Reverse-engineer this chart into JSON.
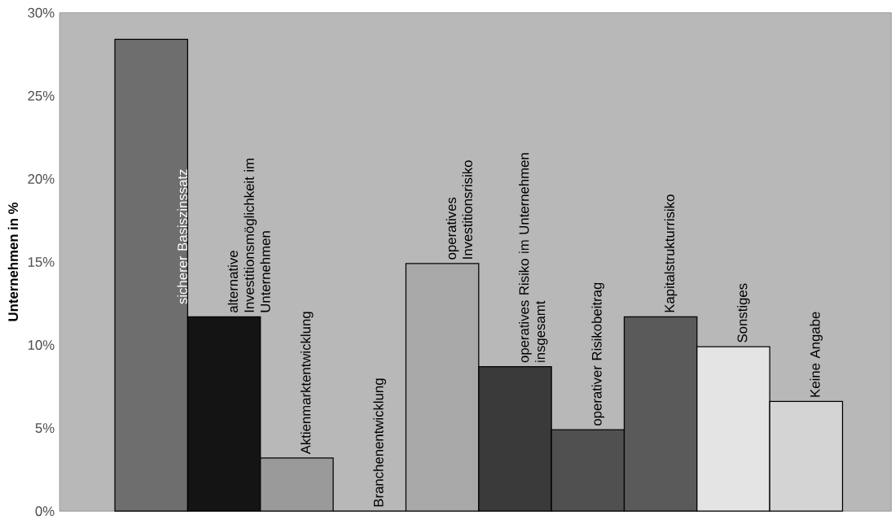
{
  "chart_data": {
    "type": "bar",
    "ylabel": "Unternehmen in %",
    "categories": [
      "sicherer Basiszinssatz",
      "alternative Investitionsmöglichkeit im Unternehmen",
      "Aktienmarktentwicklung",
      "Branchenentwicklung",
      "operatives Investitionsrisiko",
      "operatives Risiko im Unternehmen insgesamt",
      "operativer Risikobeitrag",
      "Kapitalstrukturrisiko",
      "Sonstiges",
      "Keine Angabe"
    ],
    "values": [
      28.4,
      11.7,
      3.2,
      0,
      14.9,
      8.7,
      4.9,
      11.7,
      9.9,
      6.6
    ],
    "colors": [
      "#6e6e6e",
      "#141414",
      "#9a9a9a",
      "#9a9a9a",
      "#a8a8a8",
      "#3a3a3a",
      "#505050",
      "#5a5a5a",
      "#e4e4e4",
      "#d4d4d4"
    ],
    "ylim": [
      0,
      30
    ],
    "yticks": [
      {
        "value": 0,
        "label": "0%"
      },
      {
        "value": 5,
        "label": "5%"
      },
      {
        "value": 10,
        "label": "10%"
      },
      {
        "value": 15,
        "label": "15%"
      },
      {
        "value": 20,
        "label": "20%"
      },
      {
        "value": 25,
        "label": "25%"
      },
      {
        "value": 30,
        "label": "30%"
      }
    ]
  }
}
